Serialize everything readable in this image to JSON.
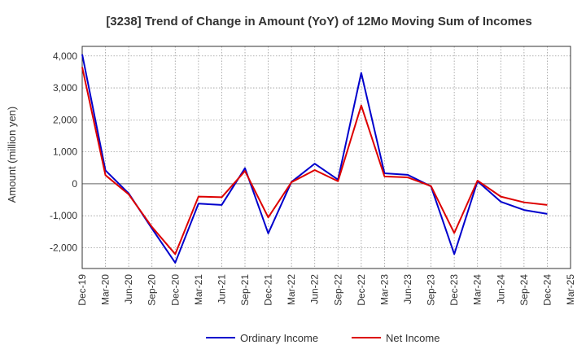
{
  "chart_data": {
    "type": "line",
    "title": "[3238]  Trend of Change in Amount (YoY) of 12Mo Moving Sum of Incomes",
    "xlabel": "",
    "ylabel": "Amount (million yen)",
    "ylim": [
      -2650,
      4300
    ],
    "yticks": [
      -2000,
      -1000,
      0,
      1000,
      2000,
      3000,
      4000
    ],
    "ytick_labels": [
      "-2,000",
      "-1,000",
      "0",
      "1,000",
      "2,000",
      "3,000",
      "4,000"
    ],
    "categories": [
      "Dec-19",
      "Mar-20",
      "Jun-20",
      "Sep-20",
      "Dec-20",
      "Mar-21",
      "Jun-21",
      "Sep-21",
      "Dec-21",
      "Mar-22",
      "Jun-22",
      "Sep-22",
      "Dec-22",
      "Mar-23",
      "Jun-23",
      "Sep-23",
      "Dec-23",
      "Mar-24",
      "Jun-24",
      "Sep-24",
      "Dec-24",
      "Mar-25"
    ],
    "grid": true,
    "legend_position": "bottom-center",
    "series": [
      {
        "name": "Ordinary Income",
        "color": "#0000cc",
        "values": [
          4050,
          420,
          -300,
          -1400,
          -2470,
          -620,
          -660,
          490,
          -1550,
          60,
          630,
          130,
          3470,
          330,
          280,
          -80,
          -2200,
          80,
          -560,
          -820,
          -940,
          null
        ]
      },
      {
        "name": "Net Income",
        "color": "#dd0000",
        "values": [
          3650,
          270,
          -330,
          -1350,
          -2200,
          -400,
          -420,
          400,
          -1050,
          50,
          430,
          80,
          2450,
          230,
          200,
          -70,
          -1540,
          100,
          -400,
          -580,
          -660,
          null
        ]
      }
    ]
  }
}
